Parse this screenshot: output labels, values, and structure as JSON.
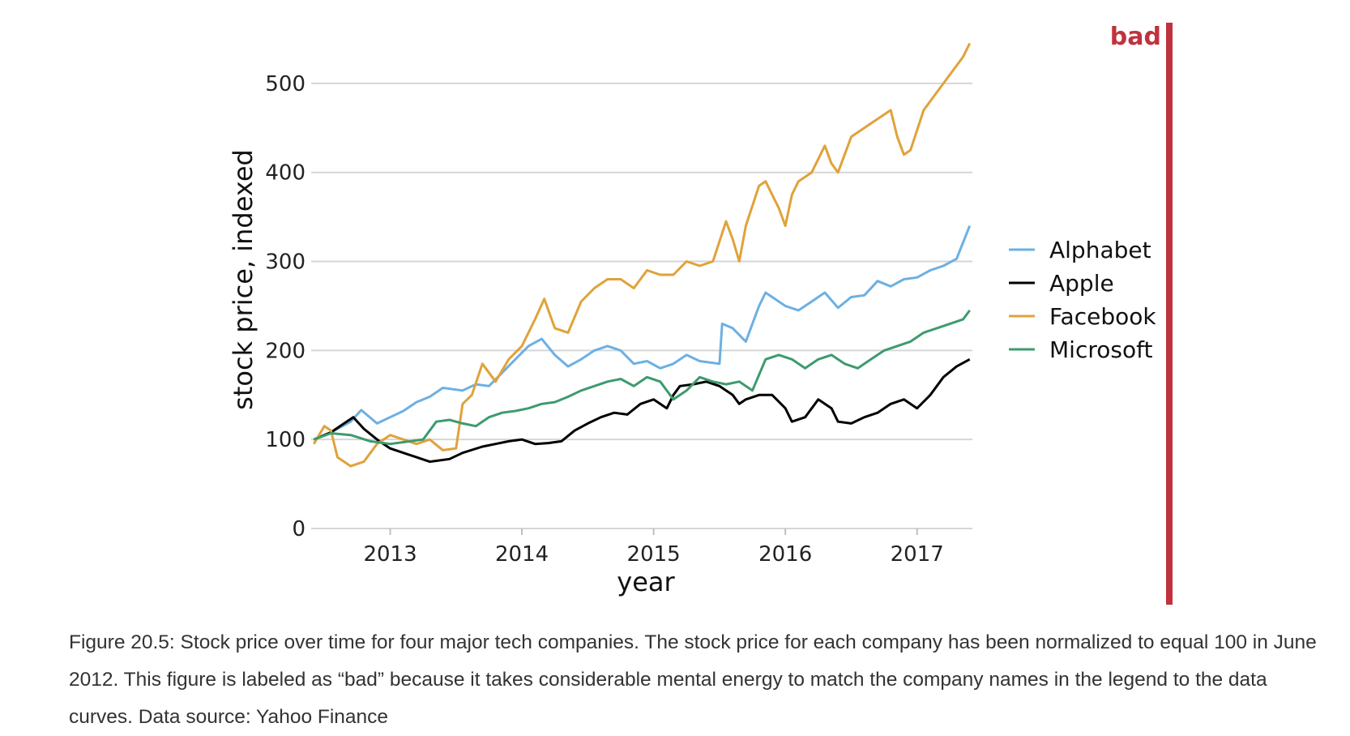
{
  "chart_data": {
    "type": "line",
    "title": "",
    "xlabel": "year",
    "ylabel": "stock price, indexed",
    "xlim": [
      2012.4,
      2017.42
    ],
    "ylim": [
      0,
      550
    ],
    "x_ticks": [
      2013,
      2014,
      2015,
      2016,
      2017
    ],
    "y_ticks": [
      0,
      100,
      200,
      300,
      400,
      500
    ],
    "grid": "horizontal",
    "legend_position": "right",
    "series": [
      {
        "name": "Alphabet",
        "color": "#6cb0e3",
        "x": [
          2012.42,
          2012.55,
          2012.7,
          2012.78,
          2012.9,
          2013.0,
          2013.1,
          2013.2,
          2013.3,
          2013.4,
          2013.55,
          2013.65,
          2013.75,
          2013.85,
          2013.95,
          2014.05,
          2014.15,
          2014.25,
          2014.35,
          2014.45,
          2014.55,
          2014.65,
          2014.75,
          2014.85,
          2014.95,
          2015.05,
          2015.15,
          2015.25,
          2015.35,
          2015.5,
          2015.52,
          2015.6,
          2015.7,
          2015.8,
          2015.85,
          2015.95,
          2016.0,
          2016.1,
          2016.2,
          2016.3,
          2016.4,
          2016.5,
          2016.6,
          2016.7,
          2016.8,
          2016.9,
          2017.0,
          2017.1,
          2017.2,
          2017.3,
          2017.4
        ],
        "values": [
          100,
          108,
          120,
          133,
          118,
          125,
          132,
          142,
          148,
          158,
          155,
          162,
          160,
          175,
          190,
          205,
          213,
          195,
          182,
          190,
          200,
          205,
          200,
          185,
          188,
          180,
          185,
          195,
          188,
          185,
          230,
          225,
          210,
          250,
          265,
          255,
          250,
          245,
          255,
          265,
          248,
          260,
          262,
          278,
          272,
          280,
          282,
          290,
          295,
          303,
          340
        ]
      },
      {
        "name": "Apple",
        "color": "#000000",
        "x": [
          2012.42,
          2012.55,
          2012.65,
          2012.72,
          2012.8,
          2012.9,
          2013.0,
          2013.1,
          2013.2,
          2013.3,
          2013.45,
          2013.55,
          2013.7,
          2013.8,
          2013.9,
          2014.0,
          2014.1,
          2014.2,
          2014.3,
          2014.4,
          2014.5,
          2014.6,
          2014.7,
          2014.8,
          2014.9,
          2015.0,
          2015.1,
          2015.15,
          2015.2,
          2015.3,
          2015.4,
          2015.5,
          2015.6,
          2015.65,
          2015.7,
          2015.8,
          2015.9,
          2016.0,
          2016.05,
          2016.15,
          2016.25,
          2016.35,
          2016.4,
          2016.5,
          2016.6,
          2016.7,
          2016.8,
          2016.9,
          2017.0,
          2017.1,
          2017.2,
          2017.3,
          2017.4
        ],
        "values": [
          100,
          108,
          118,
          125,
          112,
          100,
          90,
          85,
          80,
          75,
          78,
          85,
          92,
          95,
          98,
          100,
          95,
          96,
          98,
          110,
          118,
          125,
          130,
          128,
          140,
          145,
          135,
          150,
          160,
          162,
          165,
          160,
          150,
          140,
          145,
          150,
          150,
          135,
          120,
          125,
          145,
          135,
          120,
          118,
          125,
          130,
          140,
          145,
          135,
          150,
          170,
          182,
          190
        ]
      },
      {
        "name": "Facebook",
        "color": "#e0a23a",
        "x": [
          2012.42,
          2012.5,
          2012.55,
          2012.6,
          2012.7,
          2012.8,
          2012.9,
          2013.0,
          2013.1,
          2013.2,
          2013.3,
          2013.4,
          2013.5,
          2013.55,
          2013.62,
          2013.7,
          2013.8,
          2013.9,
          2014.0,
          2014.1,
          2014.17,
          2014.25,
          2014.35,
          2014.45,
          2014.55,
          2014.65,
          2014.75,
          2014.85,
          2014.95,
          2015.05,
          2015.15,
          2015.25,
          2015.35,
          2015.45,
          2015.55,
          2015.6,
          2015.65,
          2015.7,
          2015.8,
          2015.85,
          2015.9,
          2015.95,
          2016.0,
          2016.05,
          2016.1,
          2016.2,
          2016.3,
          2016.35,
          2016.4,
          2016.5,
          2016.6,
          2016.7,
          2016.8,
          2016.85,
          2016.9,
          2016.95,
          2017.05,
          2017.15,
          2017.25,
          2017.35,
          2017.4
        ],
        "values": [
          95,
          115,
          110,
          80,
          70,
          75,
          95,
          105,
          100,
          95,
          100,
          88,
          90,
          140,
          150,
          185,
          165,
          190,
          205,
          235,
          258,
          225,
          220,
          255,
          270,
          280,
          280,
          270,
          290,
          285,
          285,
          300,
          295,
          300,
          345,
          325,
          300,
          340,
          385,
          390,
          375,
          360,
          340,
          375,
          390,
          400,
          430,
          410,
          400,
          440,
          450,
          460,
          470,
          440,
          420,
          425,
          470,
          490,
          510,
          530,
          545
        ]
      },
      {
        "name": "Microsoft",
        "color": "#3d9b6e",
        "x": [
          2012.42,
          2012.55,
          2012.7,
          2012.85,
          2013.0,
          2013.1,
          2013.25,
          2013.35,
          2013.45,
          2013.55,
          2013.65,
          2013.75,
          2013.85,
          2013.95,
          2014.05,
          2014.15,
          2014.25,
          2014.35,
          2014.45,
          2014.55,
          2014.65,
          2014.75,
          2014.85,
          2014.95,
          2015.05,
          2015.15,
          2015.25,
          2015.35,
          2015.45,
          2015.55,
          2015.65,
          2015.75,
          2015.85,
          2015.95,
          2016.05,
          2016.15,
          2016.25,
          2016.35,
          2016.45,
          2016.55,
          2016.65,
          2016.75,
          2016.85,
          2016.95,
          2017.05,
          2017.15,
          2017.25,
          2017.35,
          2017.4
        ],
        "values": [
          100,
          107,
          105,
          98,
          95,
          97,
          100,
          120,
          122,
          118,
          115,
          125,
          130,
          132,
          135,
          140,
          142,
          148,
          155,
          160,
          165,
          168,
          160,
          170,
          165,
          145,
          155,
          170,
          165,
          162,
          165,
          155,
          190,
          195,
          190,
          180,
          190,
          195,
          185,
          180,
          190,
          200,
          205,
          210,
          220,
          225,
          230,
          235,
          245
        ]
      }
    ]
  },
  "badge": {
    "label": "bad",
    "color": "#c0323d"
  },
  "caption": "Figure 20.5: Stock price over time for four major tech companies. The stock price for each company has been normalized to equal 100 in June 2012. This figure is labeled as “bad” because it takes considerable mental energy to match the company names in the legend to the data curves. Data source: Yahoo Finance"
}
